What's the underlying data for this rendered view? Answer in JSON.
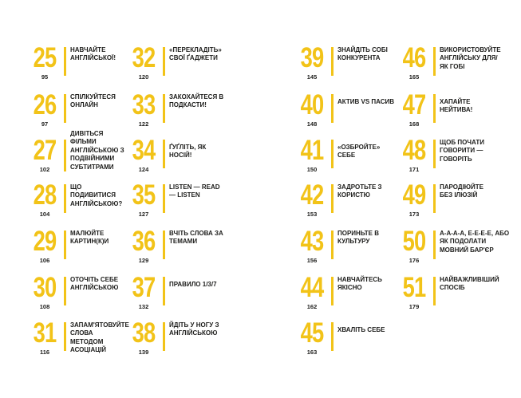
{
  "contents": {
    "column1": [
      {
        "number": "25",
        "page": "95",
        "title": "Навчайте англійської!"
      },
      {
        "number": "26",
        "page": "97",
        "title": "Спілкуйтеся онлайн"
      },
      {
        "number": "27",
        "page": "102",
        "title": "Дивіться фільми англійською з подвійними субтитрами"
      },
      {
        "number": "28",
        "page": "104",
        "title": "Що подивитися англійською?"
      },
      {
        "number": "29",
        "page": "106",
        "title": "Малюйте картин(к)и"
      },
      {
        "number": "30",
        "page": "108",
        "title": "Оточіть себе англійською"
      },
      {
        "number": "31",
        "page": "116",
        "title": "Запам'ятовуйте слова методом асоціацій"
      }
    ],
    "column2": [
      {
        "number": "32",
        "page": "120",
        "title": "«Перекладіть» свої ґаджети"
      },
      {
        "number": "33",
        "page": "122",
        "title": "Закохайтеся в подкасти!"
      },
      {
        "number": "34",
        "page": "124",
        "title": "Ґуґліть, як носій!"
      },
      {
        "number": "35",
        "page": "127",
        "title": "Listen — Read — Listen"
      },
      {
        "number": "36",
        "page": "129",
        "title": "Вчіть слова за темами"
      },
      {
        "number": "37",
        "page": "132",
        "title": "Правило 1/3/7"
      },
      {
        "number": "38",
        "page": "139",
        "title": "Йдіть у ногу з англійською"
      }
    ],
    "column3": [
      {
        "number": "39",
        "page": "145",
        "title": "Знайдіть собі конкурента"
      },
      {
        "number": "40",
        "page": "148",
        "title": "Актив vs пасив"
      },
      {
        "number": "41",
        "page": "150",
        "title": "«Озбройте» себе"
      },
      {
        "number": "42",
        "page": "153",
        "title": "Задротьте з користю"
      },
      {
        "number": "43",
        "page": "156",
        "title": "Пориньте в культуру"
      },
      {
        "number": "44",
        "page": "162",
        "title": "Навчайтесь якісно"
      },
      {
        "number": "45",
        "page": "163",
        "title": "Хваліть себе"
      }
    ],
    "column4": [
      {
        "number": "46",
        "page": "165",
        "title": "Використовуйте англійську для/як гобі"
      },
      {
        "number": "47",
        "page": "168",
        "title": "Хапайте нейтива!"
      },
      {
        "number": "48",
        "page": "171",
        "title": "Щоб почати говорити — говоріть"
      },
      {
        "number": "49",
        "page": "173",
        "title": "Пародіюйте без ілюзій"
      },
      {
        "number": "50",
        "page": "176",
        "title": "А-а-а-а, Е-е-е-е, або як подолати мовний бар'єр"
      },
      {
        "number": "51",
        "page": "179",
        "title": "Найважливіший спосіб"
      }
    ]
  },
  "colors": {
    "accent": "#f2c318",
    "text": "#1d1d1b",
    "background": "#ffffff"
  }
}
